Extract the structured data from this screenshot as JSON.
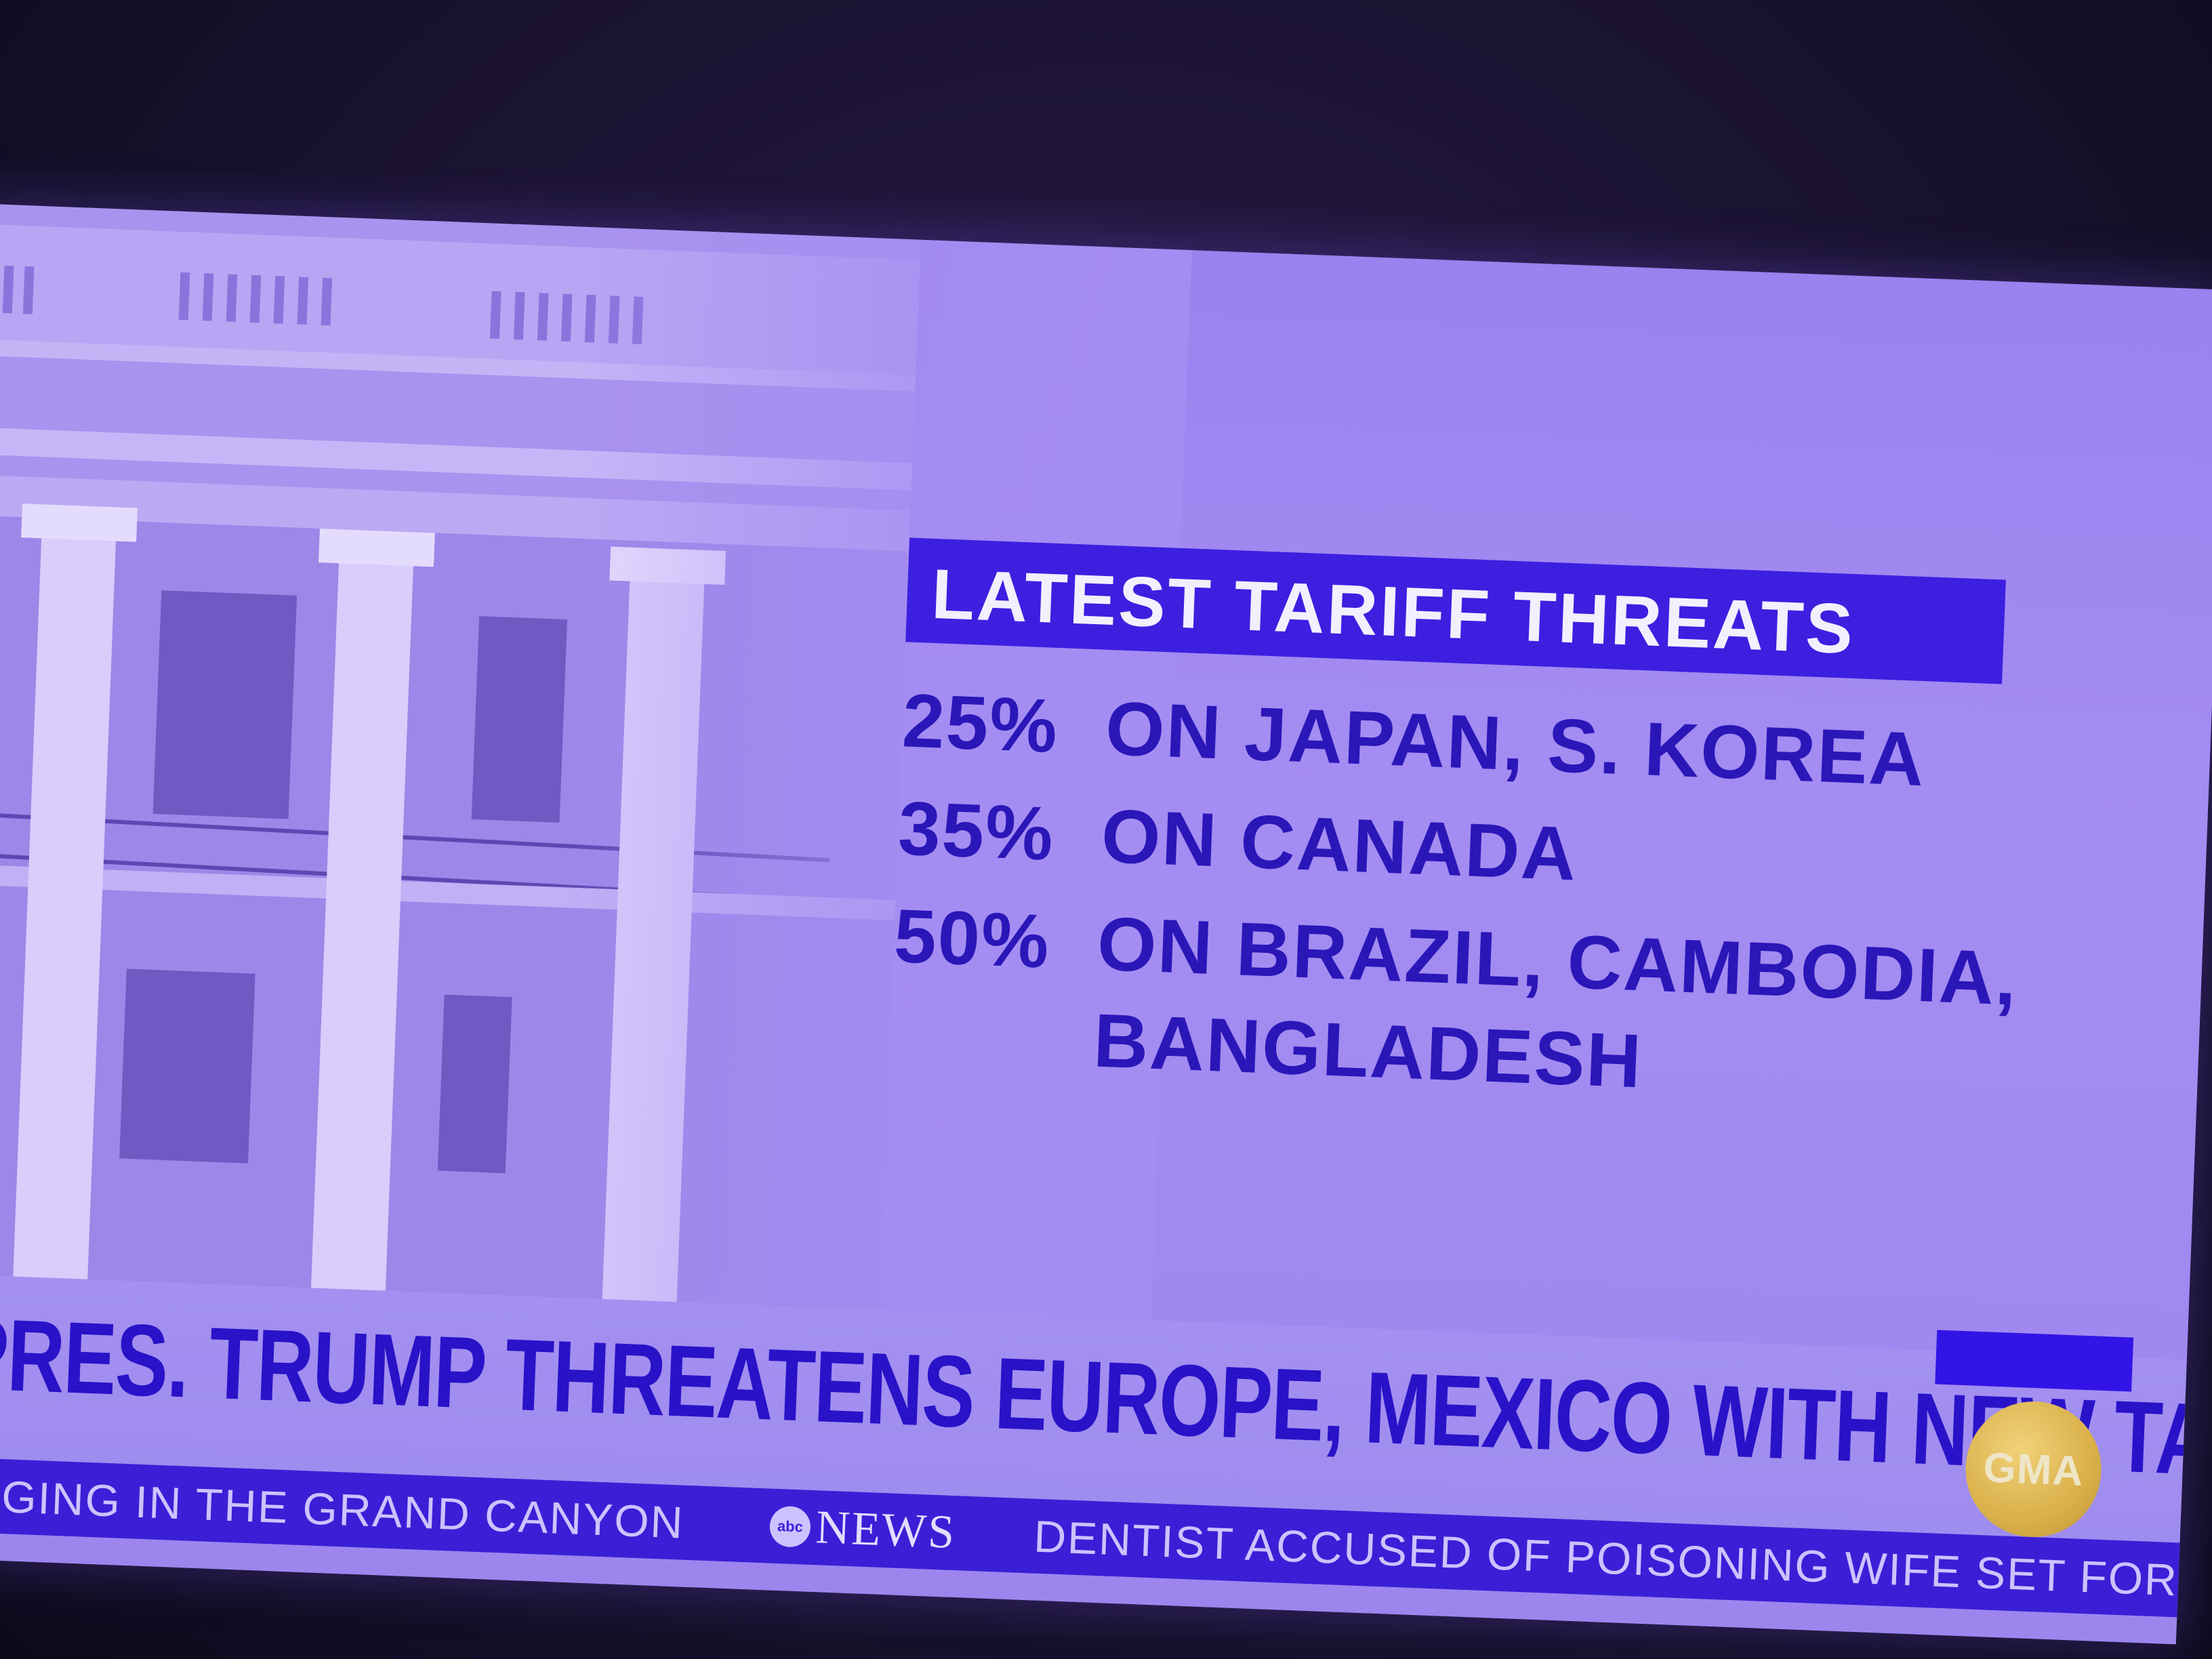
{
  "graphic": {
    "title": "LATEST TARIFF THREATS",
    "items": [
      {
        "rate": "25%",
        "text": "ON JAPAN, S. KOREA"
      },
      {
        "rate": "35%",
        "text": "ON CANADA"
      },
      {
        "rate": "50%",
        "text": "ON BRAZIL, CAMBODIA,",
        "continuation": "BANGLADESH"
      }
    ]
  },
  "lower_third": {
    "headline": "PRES. TRUMP THREATENS EUROPE, MEXICO WITH NEW TARIFFS",
    "badge": "GMA"
  },
  "ticker": {
    "left_story": "RAGING IN THE GRAND CANYON",
    "brand_logo": "abc",
    "brand_text": "NEWS",
    "right_story": "DENTIST ACCUSED OF POISONING WIFE SET FOR"
  },
  "colors": {
    "title_bar": "#3d1fe0",
    "text_blue": "#2b16b8",
    "screen_tint": "#a48df2",
    "ticker_bg": "#3a1fd6",
    "badge_gold": "#d9b04a"
  }
}
